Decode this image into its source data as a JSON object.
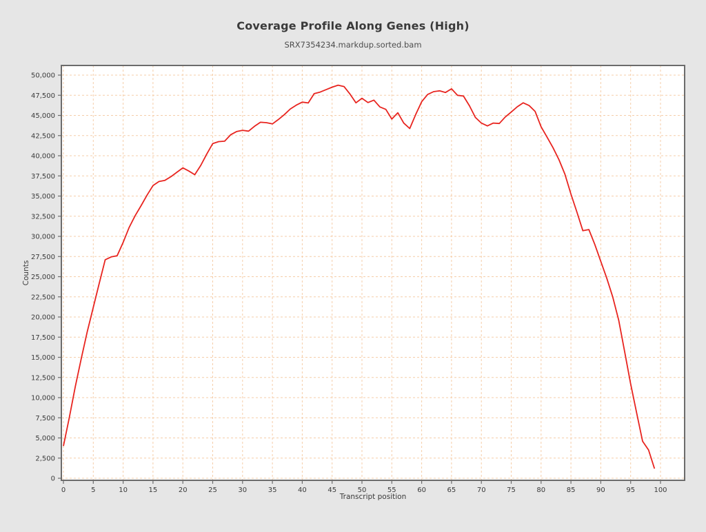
{
  "window": {
    "background": "#e6e6e6"
  },
  "header": {
    "title": "Coverage Profile Along Genes (High)",
    "subtitle": "SRX7354234.markdup.sorted.bam"
  },
  "colors": {
    "plot_background": "#ffffff",
    "frame": "#6b6b6b",
    "grid": "#f5cda8",
    "line": "#e8231e",
    "tick_label": "#3a3a3a"
  },
  "chart_data": {
    "type": "line",
    "title": "Coverage Profile Along Genes (High)",
    "subtitle": "SRX7354234.markdup.sorted.bam",
    "xlabel": "Transcript position",
    "ylabel": "Counts",
    "xlim": [
      0,
      100
    ],
    "ylim": [
      0,
      50000
    ],
    "x_ticks": [
      0,
      5,
      10,
      15,
      20,
      25,
      30,
      35,
      40,
      45,
      50,
      55,
      60,
      65,
      70,
      75,
      80,
      85,
      90,
      95,
      100
    ],
    "y_ticks": [
      0,
      2500,
      5000,
      7500,
      10000,
      12500,
      15000,
      17500,
      20000,
      22500,
      25000,
      27500,
      30000,
      32500,
      35000,
      37500,
      40000,
      42500,
      45000,
      47500,
      50000
    ],
    "grid": true,
    "grid_style": "dashed",
    "legend_position": "none",
    "series": [
      {
        "name": "coverage",
        "color": "#e8231e",
        "x_start": 0,
        "x_step": 1,
        "values": [
          4000,
          7600,
          11400,
          14900,
          18200,
          21200,
          24200,
          27100,
          27450,
          27600,
          29250,
          31100,
          32550,
          33800,
          35100,
          36300,
          36800,
          36950,
          37400,
          37950,
          38500,
          38100,
          37650,
          38800,
          40200,
          41500,
          41750,
          41800,
          42600,
          43000,
          43150,
          43050,
          43650,
          44150,
          44100,
          43950,
          44500,
          45100,
          45800,
          46270,
          46650,
          46550,
          47700,
          47900,
          48200,
          48500,
          48750,
          48580,
          47640,
          46560,
          47130,
          46600,
          46900,
          46050,
          45750,
          44550,
          45330,
          44050,
          43380,
          45100,
          46700,
          47600,
          47950,
          48050,
          47850,
          48300,
          47500,
          47400,
          46200,
          44750,
          44050,
          43700,
          44050,
          44000,
          44800,
          45420,
          46070,
          46560,
          46220,
          45500,
          43600,
          42300,
          41000,
          39500,
          37700,
          35250,
          33000,
          30700,
          30850,
          29000,
          26900,
          24800,
          22500,
          19600,
          15700,
          11700,
          8100,
          4600,
          3500,
          1200
        ]
      }
    ]
  }
}
